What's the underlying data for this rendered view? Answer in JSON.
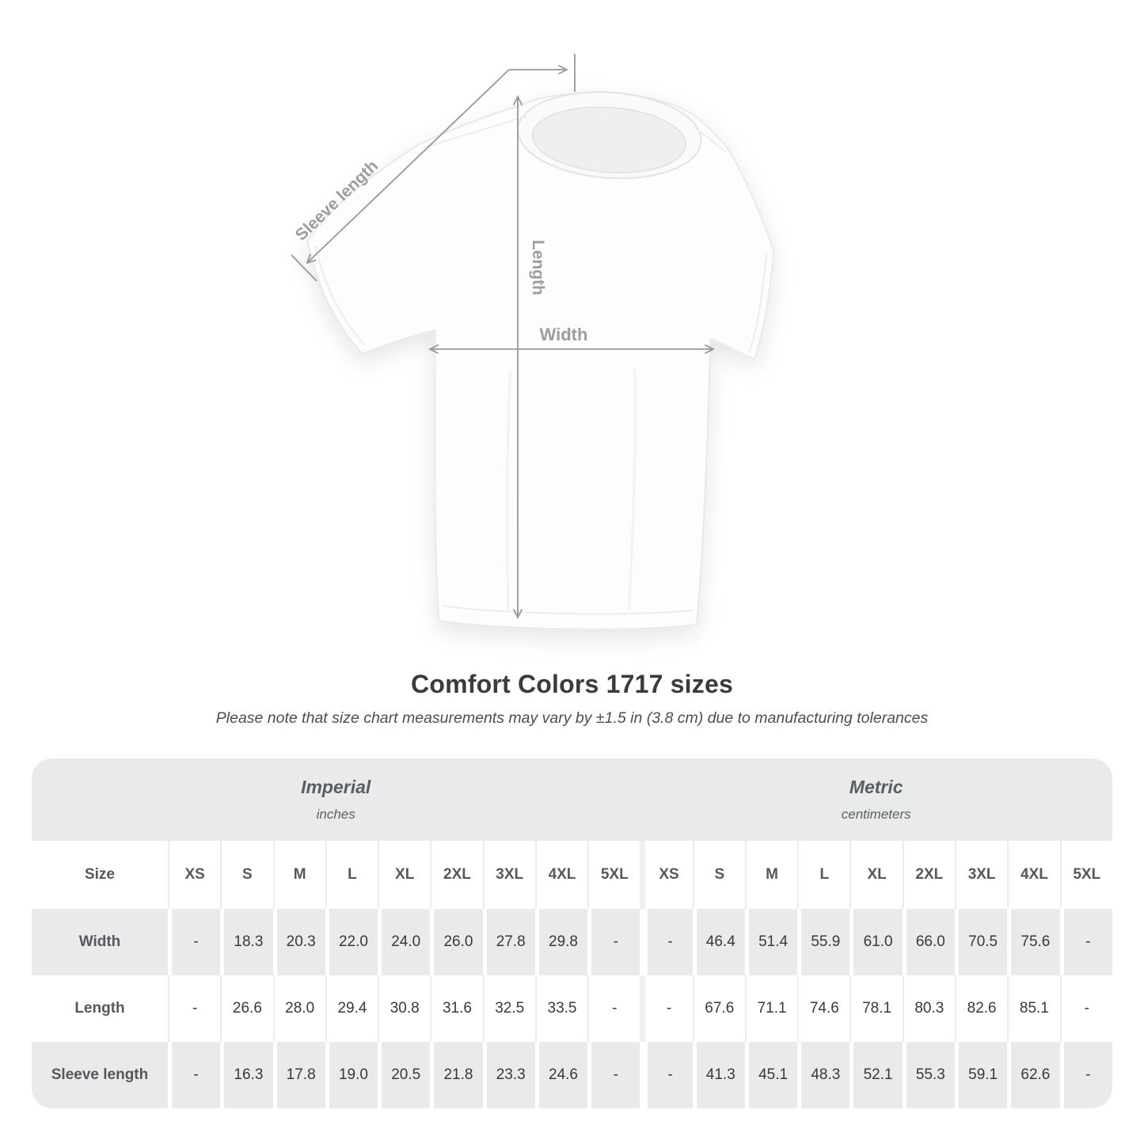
{
  "diagram": {
    "labels": {
      "sleeve_length": "Sleeve length",
      "length": "Length",
      "width": "Width"
    }
  },
  "heading": {
    "title": "Comfort Colors 1717 sizes",
    "subtitle": "Please note that size chart measurements may vary by ±1.5 in (3.8 cm) due to manufacturing tolerances"
  },
  "size_chart": {
    "size_label": "Size",
    "sizes": [
      "XS",
      "S",
      "M",
      "L",
      "XL",
      "2XL",
      "3XL",
      "4XL",
      "5XL"
    ],
    "unit_groups": [
      {
        "name": "Imperial",
        "unit": "inches"
      },
      {
        "name": "Metric",
        "unit": "centimeters"
      }
    ],
    "rows": [
      {
        "label": "Width",
        "imperial": [
          "-",
          "18.3",
          "20.3",
          "22.0",
          "24.0",
          "26.0",
          "27.8",
          "29.8",
          "-"
        ],
        "metric": [
          "-",
          "46.4",
          "51.4",
          "55.9",
          "61.0",
          "66.0",
          "70.5",
          "75.6",
          "-"
        ]
      },
      {
        "label": "Length",
        "imperial": [
          "-",
          "26.6",
          "28.0",
          "29.4",
          "30.8",
          "31.6",
          "32.5",
          "33.5",
          "-"
        ],
        "metric": [
          "-",
          "67.6",
          "71.1",
          "74.6",
          "78.1",
          "80.3",
          "82.6",
          "85.1",
          "-"
        ]
      },
      {
        "label": "Sleeve length",
        "imperial": [
          "-",
          "16.3",
          "17.8",
          "19.0",
          "20.5",
          "21.8",
          "23.3",
          "24.6",
          "-"
        ],
        "metric": [
          "-",
          "41.3",
          "45.1",
          "48.3",
          "52.1",
          "55.3",
          "59.1",
          "62.6",
          "-"
        ]
      }
    ]
  },
  "colors": {
    "annotation_line": "#94989d",
    "annotation_label": "#9a9ea3",
    "band_background": "#e9eaea",
    "title_text": "#3a3b3d",
    "table_text": "#37393b"
  }
}
